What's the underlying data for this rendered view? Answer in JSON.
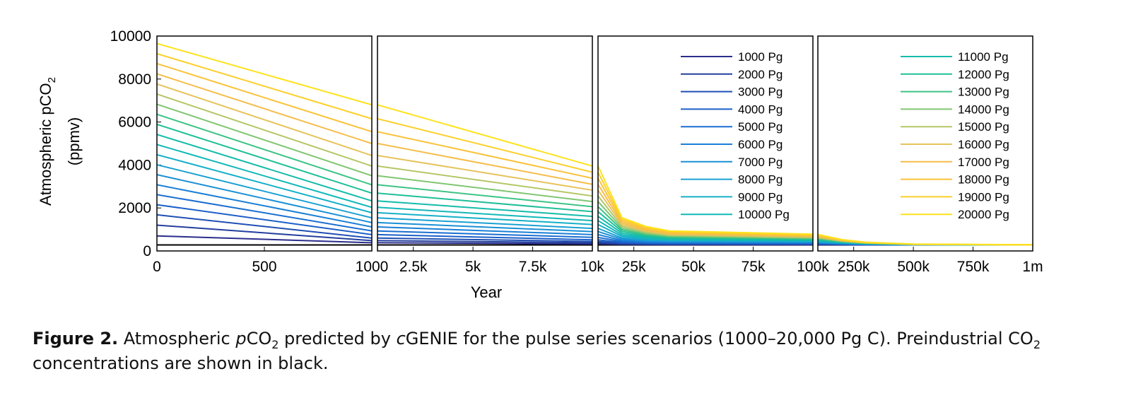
{
  "chart_data": {
    "type": "line",
    "ylabel_main": "Atmospheric pCO",
    "ylabel_sub": "2",
    "ylabel_unit": "(ppmv)",
    "xlabel": "Year",
    "ylim": [
      0,
      10000
    ],
    "yticks": [
      0,
      2000,
      4000,
      6000,
      8000,
      10000
    ],
    "ytick_labels": [
      "0",
      "2000",
      "4000",
      "6000",
      "8000",
      "10000"
    ],
    "grid": false,
    "panels": [
      {
        "x_start": 0,
        "x_end": 1000,
        "xticks": [
          0,
          500,
          1000
        ],
        "xtick_labels": [
          "0",
          "500",
          "1000"
        ]
      },
      {
        "x_start": 1000,
        "x_end": 10000,
        "xticks": [
          2500,
          5000,
          7500,
          10000
        ],
        "xtick_labels": [
          "2.5k",
          "5k",
          "7.5k",
          "10k"
        ]
      },
      {
        "x_start": 10000,
        "x_end": 100000,
        "xticks": [
          25000,
          50000,
          75000,
          100000
        ],
        "xtick_labels": [
          "25k",
          "50k",
          "75k",
          "100k"
        ]
      },
      {
        "x_start": 100000,
        "x_end": 1000000,
        "xticks": [
          250000,
          500000,
          750000,
          1000000
        ],
        "xtick_labels": [
          "250k",
          "500k",
          "750k",
          "1m"
        ]
      }
    ],
    "x": [
      0,
      1000,
      10000,
      20000,
      30000,
      40000,
      100000,
      110000,
      200000,
      300000,
      500000,
      1000000
    ],
    "preindustrial": {
      "color": "#000000",
      "values": [
        278,
        278,
        278,
        278,
        278,
        278,
        278,
        278,
        278,
        278,
        278,
        278
      ]
    },
    "series": [
      {
        "name": "1000 Pg",
        "color": "#2b2d8c",
        "values": [
          700,
          380,
          330,
          305,
          296,
          293,
          290,
          290,
          285,
          281,
          279,
          278
        ]
      },
      {
        "name": "2000 Pg",
        "color": "#233f9e",
        "values": [
          1200,
          480,
          380,
          330,
          315,
          310,
          305,
          303,
          294,
          287,
          281,
          278
        ]
      },
      {
        "name": "3000 Pg",
        "color": "#1f4fb4",
        "values": [
          1680,
          600,
          440,
          360,
          336,
          328,
          320,
          317,
          303,
          292,
          283,
          278
        ]
      },
      {
        "name": "4000 Pg",
        "color": "#1c5fc8",
        "values": [
          2150,
          760,
          520,
          395,
          362,
          350,
          340,
          335,
          314,
          299,
          285,
          279
        ]
      },
      {
        "name": "5000 Pg",
        "color": "#1a6ed2",
        "values": [
          2620,
          930,
          630,
          440,
          392,
          374,
          360,
          355,
          325,
          305,
          287,
          279
        ]
      },
      {
        "name": "6000 Pg",
        "color": "#1a7fd6",
        "values": [
          3080,
          1120,
          760,
          490,
          425,
          400,
          380,
          373,
          337,
          312,
          290,
          280
        ]
      },
      {
        "name": "7000 Pg",
        "color": "#1a90d6",
        "values": [
          3550,
          1320,
          900,
          550,
          462,
          430,
          405,
          395,
          350,
          318,
          292,
          280
        ]
      },
      {
        "name": "8000 Pg",
        "color": "#1aa1d2",
        "values": [
          4010,
          1540,
          1050,
          610,
          502,
          460,
          430,
          420,
          363,
          325,
          294,
          280
        ]
      },
      {
        "name": "9000 Pg",
        "color": "#16b0c8",
        "values": [
          4480,
          1780,
          1230,
          680,
          548,
          495,
          455,
          445,
          377,
          332,
          296,
          281
        ]
      },
      {
        "name": "10000 Pg",
        "color": "#12b8b8",
        "values": [
          4950,
          2030,
          1410,
          750,
          595,
          530,
          480,
          470,
          390,
          339,
          298,
          281
        ]
      },
      {
        "name": "11000 Pg",
        "color": "#14bcaa",
        "values": [
          5420,
          2330,
          1610,
          830,
          645,
          570,
          510,
          497,
          404,
          346,
          300,
          282
        ]
      },
      {
        "name": "12000 Pg",
        "color": "#1fbf98",
        "values": [
          5890,
          2690,
          1830,
          910,
          700,
          610,
          540,
          525,
          418,
          353,
          302,
          282
        ]
      },
      {
        "name": "13000 Pg",
        "color": "#3dc485",
        "values": [
          6360,
          3080,
          2060,
          990,
          755,
          650,
          570,
          552,
          432,
          360,
          304,
          282
        ]
      },
      {
        "name": "14000 Pg",
        "color": "#80c672",
        "values": [
          6830,
          3500,
          2300,
          1070,
          810,
          690,
          600,
          580,
          446,
          367,
          306,
          283
        ]
      },
      {
        "name": "15000 Pg",
        "color": "#b4c766",
        "values": [
          7300,
          3950,
          2560,
          1150,
          865,
          730,
          630,
          607,
          460,
          374,
          308,
          283
        ]
      },
      {
        "name": "16000 Pg",
        "color": "#e6c35c",
        "values": [
          7770,
          4440,
          2830,
          1230,
          920,
          770,
          660,
          635,
          474,
          381,
          310,
          284
        ]
      },
      {
        "name": "17000 Pg",
        "color": "#f5bd4a",
        "values": [
          8240,
          5000,
          3100,
          1310,
          975,
          810,
          690,
          662,
          488,
          388,
          312,
          284
        ]
      },
      {
        "name": "18000 Pg",
        "color": "#fac23a",
        "values": [
          8720,
          5550,
          3380,
          1390,
          1030,
          850,
          720,
          690,
          502,
          395,
          314,
          284
        ]
      },
      {
        "name": "19000 Pg",
        "color": "#fccf2a",
        "values": [
          9180,
          6150,
          3660,
          1470,
          1085,
          890,
          750,
          717,
          516,
          402,
          316,
          285
        ]
      },
      {
        "name": "20000 Pg",
        "color": "#fde21c",
        "values": [
          9650,
          6800,
          3950,
          1550,
          1140,
          930,
          780,
          745,
          530,
          409,
          318,
          285
        ]
      }
    ]
  },
  "caption": {
    "fig_label": "Figure 2.",
    "t1": " Atmospheric ",
    "t2": "p",
    "t3": "CO",
    "t4": "2",
    "t5": " predicted by ",
    "t6": "c",
    "t7": "GENIE for the pulse series scenarios (1000–20,000 Pg C). Preindustrial CO",
    "t8": "2",
    "t9": " concentrations are shown in black."
  }
}
